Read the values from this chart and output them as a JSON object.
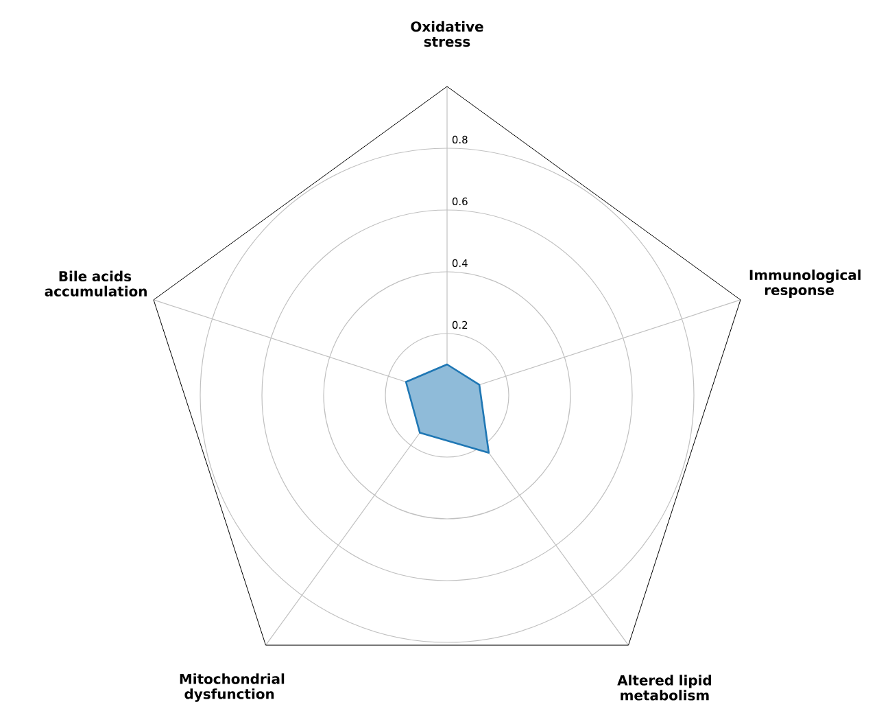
{
  "chart_data": {
    "type": "radar",
    "categories": [
      "Oxidative stress",
      "Immunological response",
      "Altered lipid metabolism",
      "Mitochondrial dysfunction",
      "Bile acids accumulation"
    ],
    "series": [
      {
        "color": "#1f77b4",
        "values": [
          0.1,
          0.11,
          0.23,
          0.15,
          0.14
        ]
      }
    ],
    "ylim": [
      0,
      1
    ],
    "yticks": [
      0.2,
      0.4,
      0.6,
      0.8
    ],
    "grid": true
  }
}
